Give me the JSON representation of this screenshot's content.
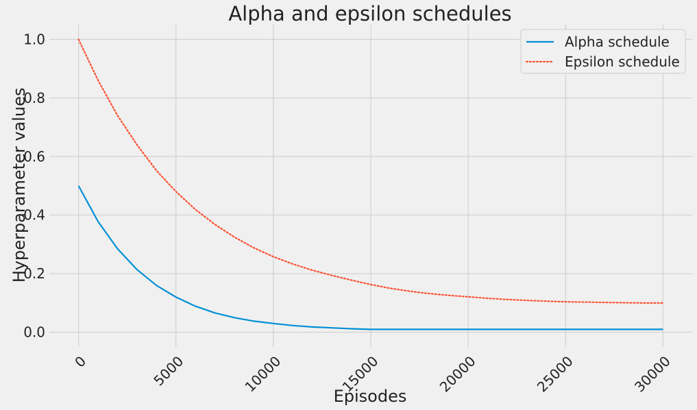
{
  "chart_data": {
    "type": "line",
    "title": "Alpha and epsilon schedules",
    "xlabel": "Episodes",
    "ylabel": "Hyperparameter values",
    "xlim": [
      -1500,
      31500
    ],
    "ylim": [
      -0.05,
      1.05
    ],
    "xticks": [
      0,
      5000,
      10000,
      15000,
      20000,
      25000,
      30000
    ],
    "yticks": [
      0.0,
      0.2,
      0.4,
      0.6,
      0.8,
      1.0
    ],
    "xtick_labels": [
      "0",
      "5000",
      "10000",
      "15000",
      "20000",
      "25000",
      "30000"
    ],
    "ytick_labels": [
      "0.0",
      "0.2",
      "0.4",
      "0.6",
      "0.8",
      "1.0"
    ],
    "grid": true,
    "legend_position": "upper right",
    "series": [
      {
        "name": "Alpha schedule",
        "color": "#008fd5",
        "style": "solid",
        "x": [
          0,
          1000,
          2000,
          3000,
          4000,
          5000,
          6000,
          7000,
          8000,
          9000,
          10000,
          11000,
          12000,
          13000,
          14000,
          15000,
          16000,
          20000,
          25000,
          30000
        ],
        "y": [
          0.5,
          0.378,
          0.285,
          0.214,
          0.16,
          0.12,
          0.089,
          0.066,
          0.05,
          0.038,
          0.03,
          0.023,
          0.018,
          0.015,
          0.012,
          0.01,
          0.01,
          0.01,
          0.01,
          0.01
        ]
      },
      {
        "name": "Epsilon schedule",
        "color": "#fc4f30",
        "style": "dotted",
        "x": [
          0,
          1000,
          2000,
          3000,
          4000,
          5000,
          6000,
          7000,
          8000,
          9000,
          10000,
          11000,
          12000,
          13000,
          14000,
          15000,
          16000,
          17000,
          18000,
          19000,
          20000,
          21000,
          22000,
          23000,
          24000,
          25000,
          26000,
          27000,
          28000,
          29000,
          30000
        ],
        "y": [
          1.0,
          0.86,
          0.74,
          0.64,
          0.552,
          0.48,
          0.419,
          0.368,
          0.325,
          0.288,
          0.258,
          0.233,
          0.212,
          0.194,
          0.178,
          0.163,
          0.15,
          0.14,
          0.132,
          0.126,
          0.121,
          0.116,
          0.112,
          0.109,
          0.106,
          0.104,
          0.103,
          0.102,
          0.101,
          0.1,
          0.1
        ]
      }
    ]
  }
}
